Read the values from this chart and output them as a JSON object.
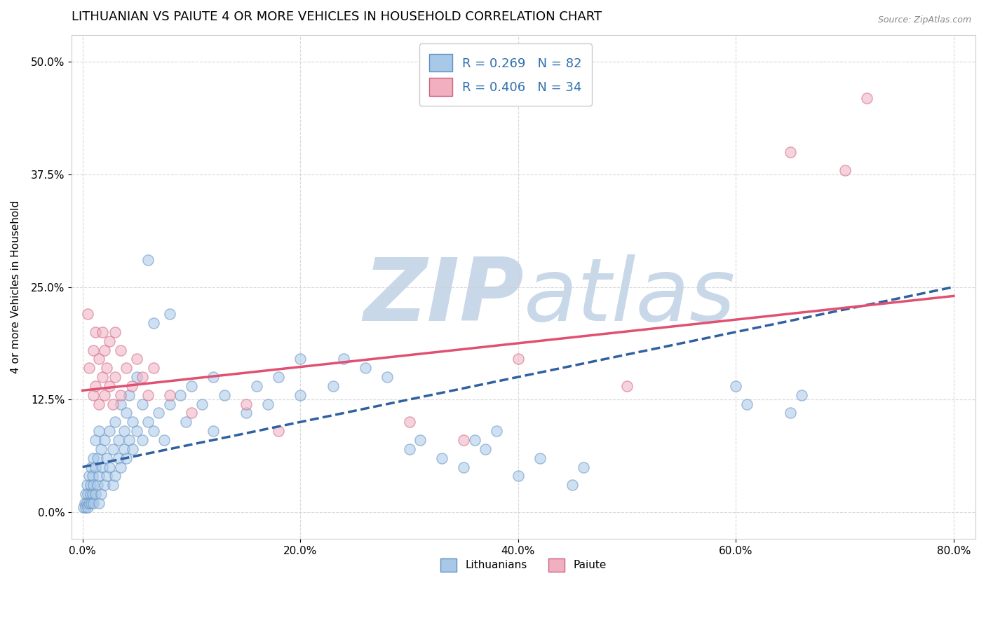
{
  "title": "LITHUANIAN VS PAIUTE 4 OR MORE VEHICLES IN HOUSEHOLD CORRELATION CHART",
  "source_text": "Source: ZipAtlas.com",
  "xlabel": "",
  "ylabel": "4 or more Vehicles in Household",
  "xlim": [
    -0.01,
    0.82
  ],
  "ylim": [
    -0.03,
    0.53
  ],
  "xticks": [
    0.0,
    0.2,
    0.4,
    0.6,
    0.8
  ],
  "xtick_labels": [
    "0.0%",
    "20.0%",
    "40.0%",
    "60.0%",
    "80.0%"
  ],
  "yticks": [
    0.0,
    0.125,
    0.25,
    0.375,
    0.5
  ],
  "ytick_labels": [
    "0.0%",
    "12.5%",
    "25.0%",
    "37.5%",
    "50.0%"
  ],
  "watermark_zip": "ZIP",
  "watermark_atlas": "atlas",
  "watermark_color": "#c8d8e8",
  "blue_scatter": [
    [
      0.001,
      0.005
    ],
    [
      0.002,
      0.01
    ],
    [
      0.003,
      0.005
    ],
    [
      0.003,
      0.02
    ],
    [
      0.004,
      0.01
    ],
    [
      0.004,
      0.03
    ],
    [
      0.005,
      0.005
    ],
    [
      0.005,
      0.02
    ],
    [
      0.006,
      0.01
    ],
    [
      0.006,
      0.04
    ],
    [
      0.007,
      0.02
    ],
    [
      0.007,
      0.03
    ],
    [
      0.008,
      0.01
    ],
    [
      0.008,
      0.05
    ],
    [
      0.009,
      0.02
    ],
    [
      0.009,
      0.04
    ],
    [
      0.01,
      0.01
    ],
    [
      0.01,
      0.03
    ],
    [
      0.01,
      0.06
    ],
    [
      0.012,
      0.02
    ],
    [
      0.012,
      0.05
    ],
    [
      0.012,
      0.08
    ],
    [
      0.014,
      0.03
    ],
    [
      0.014,
      0.06
    ],
    [
      0.015,
      0.01
    ],
    [
      0.015,
      0.04
    ],
    [
      0.015,
      0.09
    ],
    [
      0.017,
      0.02
    ],
    [
      0.017,
      0.07
    ],
    [
      0.018,
      0.05
    ],
    [
      0.02,
      0.03
    ],
    [
      0.02,
      0.08
    ],
    [
      0.022,
      0.04
    ],
    [
      0.022,
      0.06
    ],
    [
      0.025,
      0.05
    ],
    [
      0.025,
      0.09
    ],
    [
      0.028,
      0.03
    ],
    [
      0.028,
      0.07
    ],
    [
      0.03,
      0.04
    ],
    [
      0.03,
      0.1
    ],
    [
      0.033,
      0.06
    ],
    [
      0.033,
      0.08
    ],
    [
      0.035,
      0.05
    ],
    [
      0.035,
      0.12
    ],
    [
      0.038,
      0.07
    ],
    [
      0.038,
      0.09
    ],
    [
      0.04,
      0.06
    ],
    [
      0.04,
      0.11
    ],
    [
      0.043,
      0.08
    ],
    [
      0.043,
      0.13
    ],
    [
      0.046,
      0.07
    ],
    [
      0.046,
      0.1
    ],
    [
      0.05,
      0.09
    ],
    [
      0.05,
      0.15
    ],
    [
      0.055,
      0.08
    ],
    [
      0.055,
      0.12
    ],
    [
      0.06,
      0.1
    ],
    [
      0.06,
      0.28
    ],
    [
      0.065,
      0.09
    ],
    [
      0.065,
      0.21
    ],
    [
      0.07,
      0.11
    ],
    [
      0.075,
      0.08
    ],
    [
      0.08,
      0.12
    ],
    [
      0.08,
      0.22
    ],
    [
      0.09,
      0.13
    ],
    [
      0.095,
      0.1
    ],
    [
      0.1,
      0.14
    ],
    [
      0.11,
      0.12
    ],
    [
      0.12,
      0.15
    ],
    [
      0.12,
      0.09
    ],
    [
      0.13,
      0.13
    ],
    [
      0.15,
      0.11
    ],
    [
      0.16,
      0.14
    ],
    [
      0.17,
      0.12
    ],
    [
      0.18,
      0.15
    ],
    [
      0.2,
      0.13
    ],
    [
      0.2,
      0.17
    ],
    [
      0.23,
      0.14
    ],
    [
      0.24,
      0.17
    ],
    [
      0.26,
      0.16
    ],
    [
      0.28,
      0.15
    ],
    [
      0.3,
      0.07
    ],
    [
      0.31,
      0.08
    ],
    [
      0.33,
      0.06
    ],
    [
      0.35,
      0.05
    ],
    [
      0.36,
      0.08
    ],
    [
      0.37,
      0.07
    ],
    [
      0.38,
      0.09
    ],
    [
      0.4,
      0.04
    ],
    [
      0.42,
      0.06
    ],
    [
      0.45,
      0.03
    ],
    [
      0.46,
      0.05
    ],
    [
      0.6,
      0.14
    ],
    [
      0.61,
      0.12
    ],
    [
      0.65,
      0.11
    ],
    [
      0.66,
      0.13
    ]
  ],
  "pink_scatter": [
    [
      0.005,
      0.22
    ],
    [
      0.006,
      0.16
    ],
    [
      0.01,
      0.13
    ],
    [
      0.01,
      0.18
    ],
    [
      0.012,
      0.14
    ],
    [
      0.012,
      0.2
    ],
    [
      0.015,
      0.12
    ],
    [
      0.015,
      0.17
    ],
    [
      0.018,
      0.15
    ],
    [
      0.018,
      0.2
    ],
    [
      0.02,
      0.13
    ],
    [
      0.02,
      0.18
    ],
    [
      0.022,
      0.16
    ],
    [
      0.025,
      0.14
    ],
    [
      0.025,
      0.19
    ],
    [
      0.028,
      0.12
    ],
    [
      0.03,
      0.15
    ],
    [
      0.03,
      0.2
    ],
    [
      0.035,
      0.13
    ],
    [
      0.035,
      0.18
    ],
    [
      0.04,
      0.16
    ],
    [
      0.045,
      0.14
    ],
    [
      0.05,
      0.17
    ],
    [
      0.055,
      0.15
    ],
    [
      0.06,
      0.13
    ],
    [
      0.065,
      0.16
    ],
    [
      0.08,
      0.13
    ],
    [
      0.1,
      0.11
    ],
    [
      0.15,
      0.12
    ],
    [
      0.18,
      0.09
    ],
    [
      0.3,
      0.1
    ],
    [
      0.35,
      0.08
    ],
    [
      0.4,
      0.17
    ],
    [
      0.5,
      0.14
    ],
    [
      0.65,
      0.4
    ],
    [
      0.7,
      0.38
    ],
    [
      0.72,
      0.46
    ]
  ],
  "blue_line_x": [
    0.0,
    0.8
  ],
  "blue_line_y": [
    0.05,
    0.25
  ],
  "pink_line_x": [
    0.0,
    0.8
  ],
  "pink_line_y": [
    0.135,
    0.24
  ],
  "title_fontsize": 13,
  "axis_fontsize": 11,
  "tick_fontsize": 11,
  "scatter_size": 120,
  "scatter_alpha": 0.55,
  "blue_color": "#a8c8e8",
  "blue_edge_color": "#6090c0",
  "pink_color": "#f0b0c0",
  "pink_edge_color": "#d06080",
  "blue_line_color": "#3060a0",
  "pink_line_color": "#e05070",
  "grid_color": "#d0d0d0",
  "bg_color": "#ffffff",
  "plot_bg_color": "#ffffff"
}
